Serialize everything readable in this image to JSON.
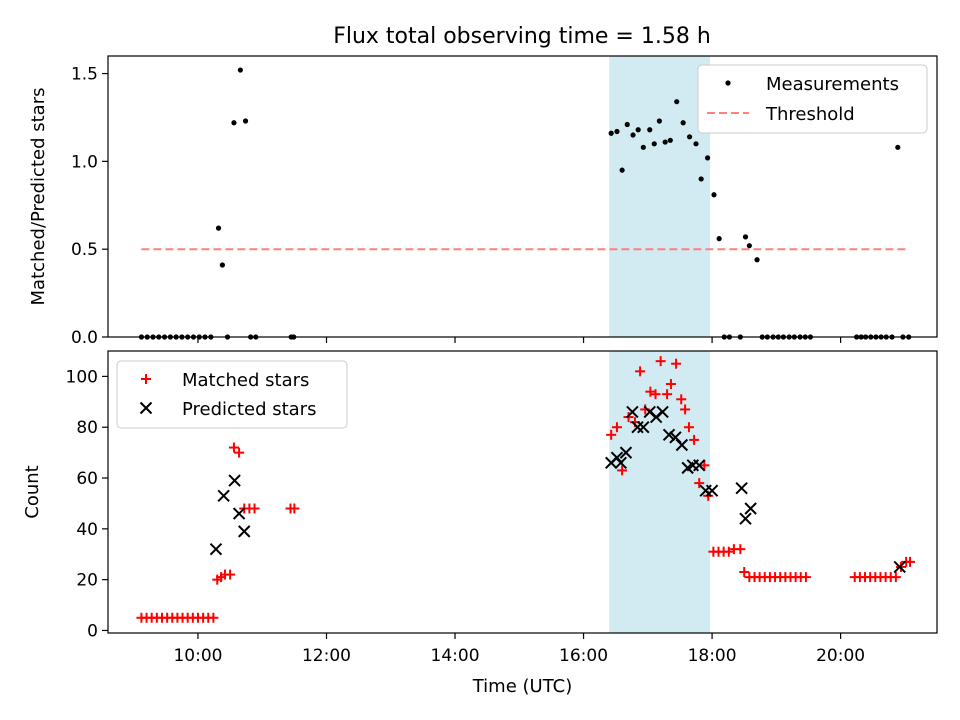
{
  "figure": {
    "title": "Flux total observing time = 1.58 h",
    "xlabel": "Time (UTC)",
    "x_ticks": [
      "10:00",
      "12:00",
      "14:00",
      "16:00",
      "18:00",
      "20:00"
    ],
    "x_tick_hours": [
      10,
      12,
      14,
      16,
      18,
      20
    ],
    "xlim_hours": [
      8.6,
      21.5
    ],
    "highlight_span_hours": [
      16.4,
      17.97
    ],
    "colors": {
      "highlight": "#add8e6",
      "threshold": "#ff7f7f",
      "matched": "#ff0000",
      "predicted": "#000000",
      "measurement": "#000000"
    }
  },
  "chart_data": [
    {
      "type": "scatter",
      "ylabel": "Matched/Predicted stars",
      "ylim": [
        0,
        1.6
      ],
      "y_ticks": [
        "0.0",
        "0.5",
        "1.0",
        "1.5"
      ],
      "y_tick_values": [
        0,
        0.5,
        1.0,
        1.5
      ],
      "legend_position": "top-right",
      "grid": false,
      "series": [
        {
          "name": "Measurements",
          "marker": "dot",
          "x_hours": [
            9.12,
            9.21,
            9.3,
            9.39,
            9.48,
            9.57,
            9.66,
            9.75,
            9.84,
            9.93,
            10.02,
            10.11,
            10.2,
            10.32,
            10.38,
            10.46,
            10.56,
            10.66,
            10.74,
            10.82,
            10.9,
            11.45,
            11.49,
            16.43,
            16.52,
            16.6,
            16.68,
            16.77,
            16.85,
            16.93,
            17.03,
            17.1,
            17.18,
            17.27,
            17.35,
            17.45,
            17.55,
            17.65,
            17.75,
            17.83,
            17.93,
            18.03,
            18.11,
            18.19,
            18.27,
            18.44,
            18.52,
            18.58,
            18.7,
            18.78,
            18.86,
            18.95,
            19.03,
            19.11,
            19.2,
            19.28,
            19.37,
            19.45,
            19.53,
            20.25,
            20.32,
            20.39,
            20.47,
            20.55,
            20.63,
            20.71,
            20.8,
            20.89,
            20.97,
            21.06
          ],
          "y": [
            0,
            0,
            0,
            0,
            0,
            0,
            0,
            0,
            0,
            0,
            0,
            0,
            0,
            0.62,
            0.41,
            0,
            1.22,
            1.52,
            1.23,
            0,
            0,
            0,
            0,
            1.16,
            1.17,
            0.95,
            1.21,
            1.15,
            1.18,
            1.08,
            1.18,
            1.1,
            1.23,
            1.11,
            1.12,
            1.34,
            1.22,
            1.14,
            1.1,
            0.9,
            1.02,
            0.81,
            0.56,
            0,
            0,
            0,
            0.57,
            0.52,
            0.44,
            0,
            0,
            0,
            0,
            0,
            0,
            0,
            0,
            0,
            0,
            0,
            0,
            0,
            0,
            0,
            0,
            0,
            0,
            1.08,
            0,
            0
          ]
        },
        {
          "name": "Threshold",
          "style": "dashed",
          "x_hours": [
            9.12,
            21.06
          ],
          "y": [
            0.5,
            0.5
          ]
        }
      ]
    },
    {
      "type": "scatter",
      "ylabel": "Count",
      "ylim": [
        -1,
        110
      ],
      "y_ticks": [
        "0",
        "20",
        "40",
        "60",
        "80",
        "100"
      ],
      "y_tick_values": [
        0,
        20,
        40,
        60,
        80,
        100
      ],
      "legend_position": "top-left",
      "grid": false,
      "series": [
        {
          "name": "Matched stars",
          "marker": "plus",
          "x_hours": [
            9.12,
            9.2,
            9.28,
            9.36,
            9.44,
            9.52,
            9.6,
            9.68,
            9.76,
            9.84,
            9.92,
            10.0,
            10.08,
            10.16,
            10.24,
            10.3,
            10.36,
            10.42,
            10.5,
            10.56,
            10.64,
            10.72,
            10.8,
            10.88,
            11.44,
            11.5,
            16.43,
            16.52,
            16.6,
            16.7,
            16.8,
            16.88,
            16.96,
            17.04,
            17.12,
            17.2,
            17.3,
            17.36,
            17.44,
            17.52,
            17.58,
            17.64,
            17.72,
            17.8,
            17.88,
            17.94,
            18.02,
            18.1,
            18.18,
            18.26,
            18.34,
            18.44,
            18.5,
            18.58,
            18.66,
            18.74,
            18.82,
            18.9,
            18.98,
            19.06,
            19.14,
            19.22,
            19.3,
            19.38,
            19.46,
            20.22,
            20.3,
            20.38,
            20.46,
            20.54,
            20.62,
            20.7,
            20.78,
            20.86,
            20.94,
            21.02,
            21.08
          ],
          "y": [
            5,
            5,
            5,
            5,
            5,
            5,
            5,
            5,
            5,
            5,
            5,
            5,
            5,
            5,
            5,
            20,
            21,
            22,
            22,
            72,
            70,
            48,
            48,
            48,
            48,
            48,
            77,
            80,
            63,
            84,
            82,
            102,
            87,
            94,
            93,
            106,
            93,
            97,
            105,
            91,
            87,
            80,
            75,
            58,
            65,
            53,
            31,
            31,
            31,
            31,
            32,
            32,
            23,
            21,
            21,
            21,
            21,
            21,
            21,
            21,
            21,
            21,
            21,
            21,
            21,
            21,
            21,
            21,
            21,
            21,
            21,
            21,
            21,
            21,
            25,
            27,
            27
          ]
        },
        {
          "name": "Predicted stars",
          "marker": "x",
          "x_hours": [
            10.28,
            10.4,
            10.57,
            10.64,
            10.72,
            16.43,
            16.52,
            16.58,
            16.66,
            16.76,
            16.84,
            16.93,
            17.03,
            17.13,
            17.23,
            17.33,
            17.43,
            17.53,
            17.62,
            17.7,
            17.8,
            17.9,
            18.0,
            18.46,
            18.52,
            18.6,
            20.92
          ],
          "y": [
            32,
            53,
            59,
            46,
            39,
            66,
            68,
            66,
            70,
            86,
            80,
            80,
            86,
            84,
            86,
            77,
            76,
            73,
            64,
            65,
            65,
            55,
            55,
            56,
            44,
            48,
            25
          ]
        }
      ]
    }
  ]
}
